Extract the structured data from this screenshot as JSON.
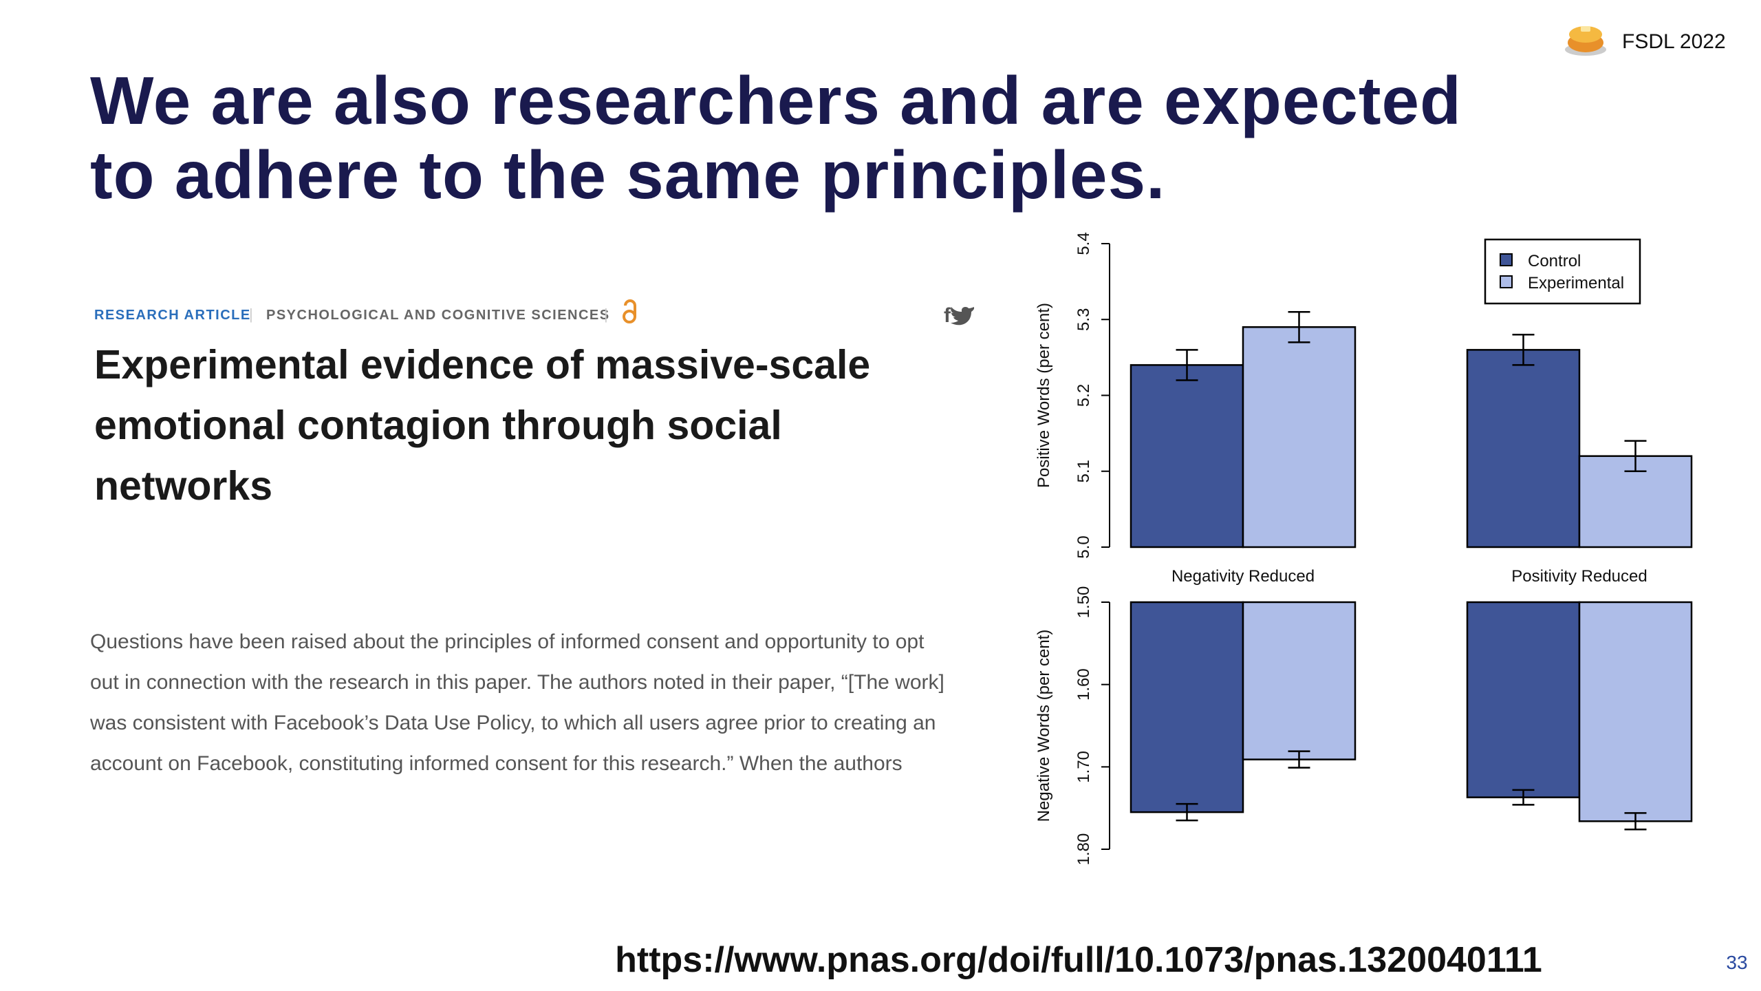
{
  "header": {
    "logo_text": "FSDL 2022",
    "title_lines": [
      "We are also researchers and are expected",
      "to adhere to the same principles."
    ]
  },
  "article": {
    "category": "RESEARCH ARTICLE",
    "section": "PSYCHOLOGICAL AND COGNITIVE SCIENCES",
    "title_lines": [
      "Experimental evidence of massive-scale",
      "emotional contagion through social",
      "networks"
    ],
    "abstract_lines": [
      "Questions have been raised about the principles of informed consent and opportunity to opt",
      "out in connection with the research in this paper. The authors noted in their paper, “[The work]",
      "was consistent with Facebook’s Data Use Policy, to which all users agree prior to creating an",
      "account on Facebook, constituting informed consent for this research.” When the authors"
    ]
  },
  "chart_data": [
    {
      "type": "bar",
      "y_label": "Positive Words (per cent)",
      "categories": [
        "Negativity Reduced",
        "Positivity Reduced"
      ],
      "series": [
        {
          "name": "Control",
          "color": "#3f5597",
          "values": [
            5.24,
            5.26
          ],
          "errors": [
            0.02,
            0.02
          ]
        },
        {
          "name": "Experimental",
          "color": "#aebde8",
          "values": [
            5.29,
            5.12
          ],
          "errors": [
            0.02,
            0.02
          ]
        }
      ],
      "ylim": [
        5,
        5.4
      ],
      "yticks": [
        {
          "value": 5,
          "label": "5.0"
        },
        5.1,
        5.2,
        5.3,
        5.4
      ],
      "legend": "top-right"
    },
    {
      "type": "bar",
      "y_label": "Negative Words (per cent)",
      "categories": [
        null,
        null
      ],
      "series": [
        {
          "color": "#3f5597",
          "values": [
            1.755,
            1.737
          ],
          "errors": [
            0.01,
            0.009
          ]
        },
        {
          "color": "#aebde8",
          "values": [
            1.691,
            1.766
          ],
          "errors": [
            0.01,
            0.01
          ]
        }
      ],
      "ylim": [
        1.5,
        1.8
      ],
      "inverted": true,
      "yticks": [
        {
          "value": 1.5,
          "label": "1.50"
        },
        {
          "value": 1.6,
          "label": "1.60"
        },
        {
          "value": 1.7,
          "label": "1.70"
        },
        {
          "value": 1.8,
          "label": "1.80"
        }
      ]
    }
  ],
  "footer": {
    "url": "https://www.pnas.org/doi/full/10.1073/pnas.1320040111",
    "page": "33"
  }
}
